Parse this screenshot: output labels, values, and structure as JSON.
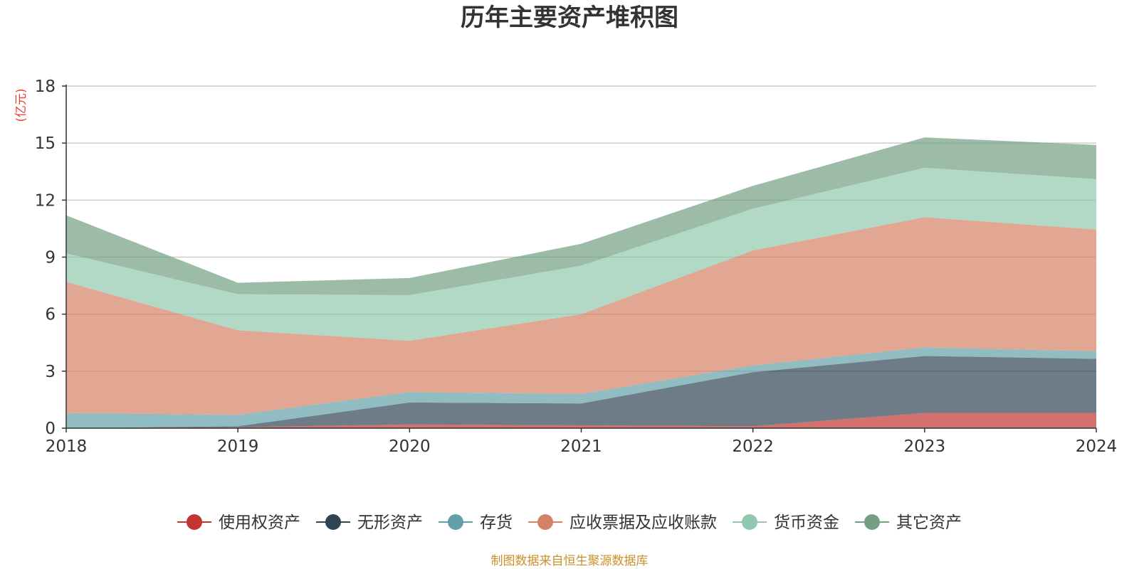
{
  "chart_data": {
    "type": "area",
    "stacked": true,
    "title": "历年主要资产堆积图",
    "unit_label": "(亿元)",
    "x": [
      "2018",
      "2019",
      "2020",
      "2021",
      "2022",
      "2023",
      "2024"
    ],
    "ylim": [
      0,
      18
    ],
    "yticks": [
      "0",
      "3",
      "6",
      "9",
      "12",
      "15",
      "18"
    ],
    "grid": true,
    "legend_position": "bottom",
    "series": [
      {
        "name": "使用权资产",
        "color": "#c23531",
        "values": [
          0.0,
          0.05,
          0.2,
          0.15,
          0.1,
          0.8,
          0.8
        ]
      },
      {
        "name": "无形资产",
        "color": "#2f4554",
        "values": [
          0.0,
          0.05,
          1.15,
          1.15,
          2.85,
          3.0,
          2.85
        ]
      },
      {
        "name": "存货",
        "color": "#61a0a8",
        "values": [
          0.8,
          0.6,
          0.55,
          0.5,
          0.35,
          0.45,
          0.4
        ]
      },
      {
        "name": "应收票据及应收账款",
        "color": "#d48265",
        "values": [
          6.9,
          4.45,
          2.7,
          4.2,
          6.05,
          6.85,
          6.4
        ]
      },
      {
        "name": "货币资金",
        "color": "#91c7ae",
        "values": [
          1.5,
          1.9,
          2.4,
          2.55,
          2.2,
          2.6,
          2.65
        ]
      },
      {
        "name": "其它资产",
        "color": "#749f83",
        "values": [
          2.0,
          0.6,
          0.9,
          1.15,
          1.2,
          1.6,
          1.8
        ]
      }
    ],
    "source_note": "制图数据来自恒生聚源数据库"
  }
}
